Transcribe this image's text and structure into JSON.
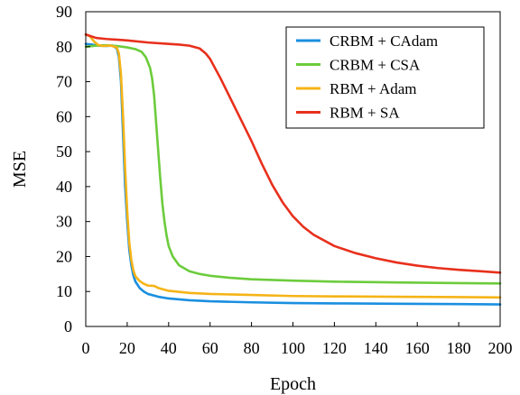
{
  "chart_data": {
    "type": "line",
    "xlabel": "Epoch",
    "ylabel": "MSE",
    "xlim": [
      0,
      200
    ],
    "ylim": [
      0,
      90
    ],
    "xticks": [
      0,
      20,
      40,
      60,
      80,
      100,
      120,
      140,
      160,
      180,
      200
    ],
    "yticks": [
      0,
      10,
      20,
      30,
      40,
      50,
      60,
      70,
      80,
      90
    ],
    "grid": false,
    "legend_position": "top-right",
    "series": [
      {
        "name": "CRBM + CAdam",
        "color": "#1a8fe0",
        "points": [
          [
            0,
            80.8
          ],
          [
            3,
            80.6
          ],
          [
            6,
            80.3
          ],
          [
            10,
            80.2
          ],
          [
            13,
            80.3
          ],
          [
            15,
            79.5
          ],
          [
            16,
            77
          ],
          [
            17,
            70
          ],
          [
            18,
            55
          ],
          [
            19,
            40
          ],
          [
            20,
            30
          ],
          [
            21,
            22
          ],
          [
            22,
            17.5
          ],
          [
            23,
            14.5
          ],
          [
            24,
            12.8
          ],
          [
            26,
            11
          ],
          [
            28,
            10
          ],
          [
            30,
            9.3
          ],
          [
            35,
            8.5
          ],
          [
            40,
            8.0
          ],
          [
            50,
            7.5
          ],
          [
            60,
            7.2
          ],
          [
            80,
            6.9
          ],
          [
            100,
            6.7
          ],
          [
            120,
            6.6
          ],
          [
            150,
            6.5
          ],
          [
            180,
            6.4
          ],
          [
            200,
            6.3
          ]
        ]
      },
      {
        "name": "CRBM + CSA",
        "color": "#6ccc3c",
        "points": [
          [
            0,
            80.0
          ],
          [
            5,
            80.3
          ],
          [
            10,
            80.4
          ],
          [
            15,
            80.2
          ],
          [
            20,
            79.8
          ],
          [
            24,
            79.3
          ],
          [
            27,
            78.5
          ],
          [
            29,
            77
          ],
          [
            31,
            74
          ],
          [
            32,
            71
          ],
          [
            33,
            66
          ],
          [
            34,
            58
          ],
          [
            35,
            50
          ],
          [
            36,
            42
          ],
          [
            37,
            35
          ],
          [
            38,
            30
          ],
          [
            39,
            26
          ],
          [
            40,
            23
          ],
          [
            42,
            20
          ],
          [
            45,
            17.5
          ],
          [
            50,
            15.8
          ],
          [
            55,
            15.0
          ],
          [
            60,
            14.5
          ],
          [
            70,
            13.9
          ],
          [
            80,
            13.5
          ],
          [
            100,
            13.1
          ],
          [
            120,
            12.8
          ],
          [
            150,
            12.6
          ],
          [
            180,
            12.4
          ],
          [
            200,
            12.3
          ]
        ]
      },
      {
        "name": "RBM + Adam",
        "color": "#f5b417",
        "points": [
          [
            0,
            83.5
          ],
          [
            2,
            83
          ],
          [
            4,
            81.5
          ],
          [
            6,
            80.5
          ],
          [
            8,
            80.2
          ],
          [
            12,
            80.3
          ],
          [
            15,
            79.8
          ],
          [
            16,
            78
          ],
          [
            17,
            72
          ],
          [
            18,
            60
          ],
          [
            19,
            45
          ],
          [
            20,
            33
          ],
          [
            21,
            24
          ],
          [
            22,
            19
          ],
          [
            23,
            16
          ],
          [
            24,
            14.3
          ],
          [
            26,
            13
          ],
          [
            28,
            12.2
          ],
          [
            30,
            11.7
          ],
          [
            33,
            11.6
          ],
          [
            35,
            11.0
          ],
          [
            40,
            10.2
          ],
          [
            50,
            9.6
          ],
          [
            60,
            9.3
          ],
          [
            80,
            9.0
          ],
          [
            100,
            8.7
          ],
          [
            120,
            8.6
          ],
          [
            150,
            8.5
          ],
          [
            180,
            8.4
          ],
          [
            200,
            8.3
          ]
        ]
      },
      {
        "name": "RBM + SA",
        "color": "#e8301c",
        "points": [
          [
            0,
            83.5
          ],
          [
            5,
            82.5
          ],
          [
            10,
            82.2
          ],
          [
            20,
            81.8
          ],
          [
            30,
            81.2
          ],
          [
            40,
            80.8
          ],
          [
            45,
            80.6
          ],
          [
            50,
            80.3
          ],
          [
            55,
            79.5
          ],
          [
            58,
            78
          ],
          [
            60,
            76.5
          ],
          [
            65,
            71
          ],
          [
            70,
            65
          ],
          [
            75,
            59
          ],
          [
            80,
            53
          ],
          [
            85,
            46.5
          ],
          [
            90,
            40.5
          ],
          [
            95,
            35.5
          ],
          [
            100,
            31.5
          ],
          [
            105,
            28.5
          ],
          [
            110,
            26.2
          ],
          [
            120,
            23.0
          ],
          [
            130,
            21.0
          ],
          [
            140,
            19.5
          ],
          [
            150,
            18.3
          ],
          [
            160,
            17.4
          ],
          [
            170,
            16.7
          ],
          [
            180,
            16.2
          ],
          [
            190,
            15.8
          ],
          [
            200,
            15.4
          ]
        ]
      }
    ]
  }
}
